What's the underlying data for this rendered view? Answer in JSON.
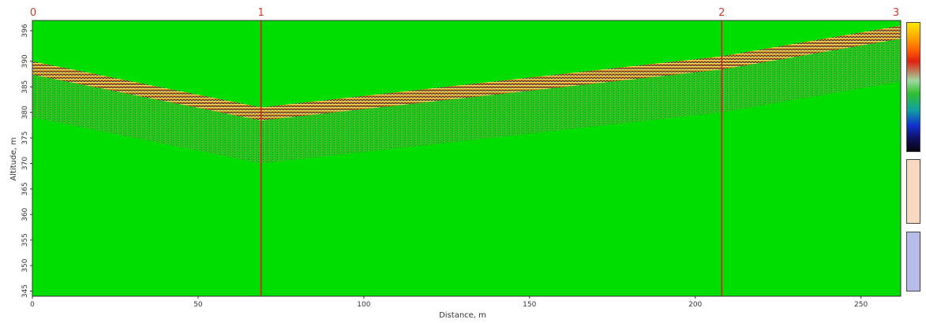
{
  "chart_data": {
    "type": "heatmap",
    "title": "",
    "xlabel": "Distance, m",
    "ylabel": "Altitude, m",
    "xlim": [
      0,
      262
    ],
    "ylim": [
      344,
      398
    ],
    "x_ticks": [
      0,
      50,
      100,
      150,
      200,
      250
    ],
    "y_ticks": [
      396,
      390,
      385,
      380,
      375,
      370,
      365,
      360,
      355,
      350,
      345
    ],
    "background_color": "#00dd00",
    "markers": [
      {
        "label": "0",
        "x": 0
      },
      {
        "label": "1",
        "x": 69
      },
      {
        "label": "2",
        "x": 208
      },
      {
        "label": "3",
        "x": 262
      }
    ],
    "surface": {
      "x": [
        0,
        69,
        208,
        262
      ],
      "y": [
        390,
        381,
        391,
        397
      ]
    },
    "signal_depth_m": 11,
    "grid": false,
    "colorbar": true
  }
}
